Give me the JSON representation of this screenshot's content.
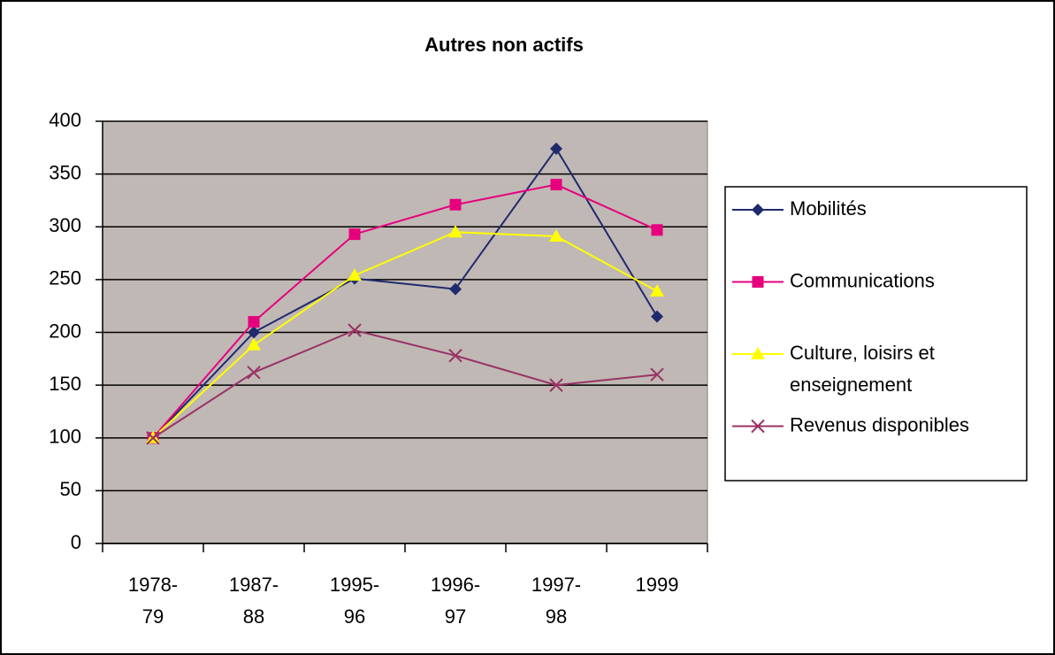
{
  "chart_data": {
    "type": "line",
    "title": "Autres non actifs",
    "categories": [
      "1978-79",
      "1987-88",
      "1995-96",
      "1996-97",
      "1997-98",
      "1999"
    ],
    "series": [
      {
        "name": "Mobilités",
        "color": "#1f2a6e",
        "marker": "diamond",
        "values": [
          100,
          200,
          251,
          241,
          374,
          215
        ]
      },
      {
        "name": "Communications",
        "color": "#e6007e",
        "marker": "square",
        "values": [
          100,
          210,
          293,
          321,
          340,
          297
        ]
      },
      {
        "name": "Culture, loisirs et enseignement",
        "color": "#ffff00",
        "marker": "triangle",
        "values": [
          100,
          188,
          254,
          295,
          291,
          239
        ]
      },
      {
        "name": "Revenus disponibles",
        "color": "#993366",
        "marker": "x",
        "values": [
          100,
          162,
          202,
          178,
          150,
          160
        ]
      }
    ],
    "ylim": [
      0,
      400
    ],
    "yticks": [
      0,
      50,
      100,
      150,
      200,
      250,
      300,
      350,
      400
    ],
    "grid": true,
    "legend": "right"
  }
}
